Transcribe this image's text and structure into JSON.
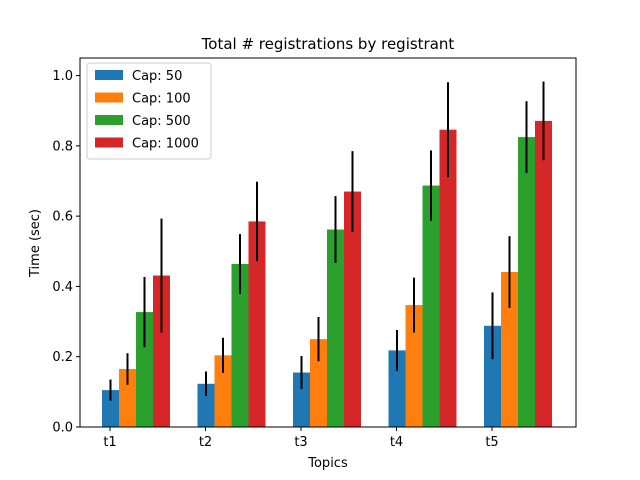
{
  "chart_data": {
    "type": "bar",
    "title": "Total # registrations by registrant",
    "xlabel": "Topics",
    "ylabel": "Time (sec)",
    "categories": [
      "t1",
      "t2",
      "t3",
      "t4",
      "t5"
    ],
    "ylim": [
      0,
      1.05
    ],
    "yticks": [
      "0.0",
      "0.2",
      "0.4",
      "0.6",
      "0.8",
      "1.0"
    ],
    "legend_position": "top-left",
    "grid": false,
    "series": [
      {
        "name": "Cap: 50",
        "color": "#1f77b4",
        "values": [
          0.105,
          0.123,
          0.155,
          0.218,
          0.288
        ],
        "errors": [
          0.03,
          0.035,
          0.047,
          0.058,
          0.095
        ]
      },
      {
        "name": "Cap: 100",
        "color": "#ff7f0e",
        "values": [
          0.165,
          0.204,
          0.25,
          0.347,
          0.441
        ],
        "errors": [
          0.045,
          0.05,
          0.063,
          0.078,
          0.102
        ]
      },
      {
        "name": "Cap: 500",
        "color": "#2ca02c",
        "values": [
          0.327,
          0.464,
          0.562,
          0.687,
          0.825
        ],
        "errors": [
          0.1,
          0.085,
          0.095,
          0.1,
          0.102
        ]
      },
      {
        "name": "Cap: 1000",
        "color": "#d62728",
        "values": [
          0.431,
          0.585,
          0.67,
          0.846,
          0.871
        ],
        "errors": [
          0.162,
          0.113,
          0.115,
          0.135,
          0.112
        ]
      }
    ]
  }
}
